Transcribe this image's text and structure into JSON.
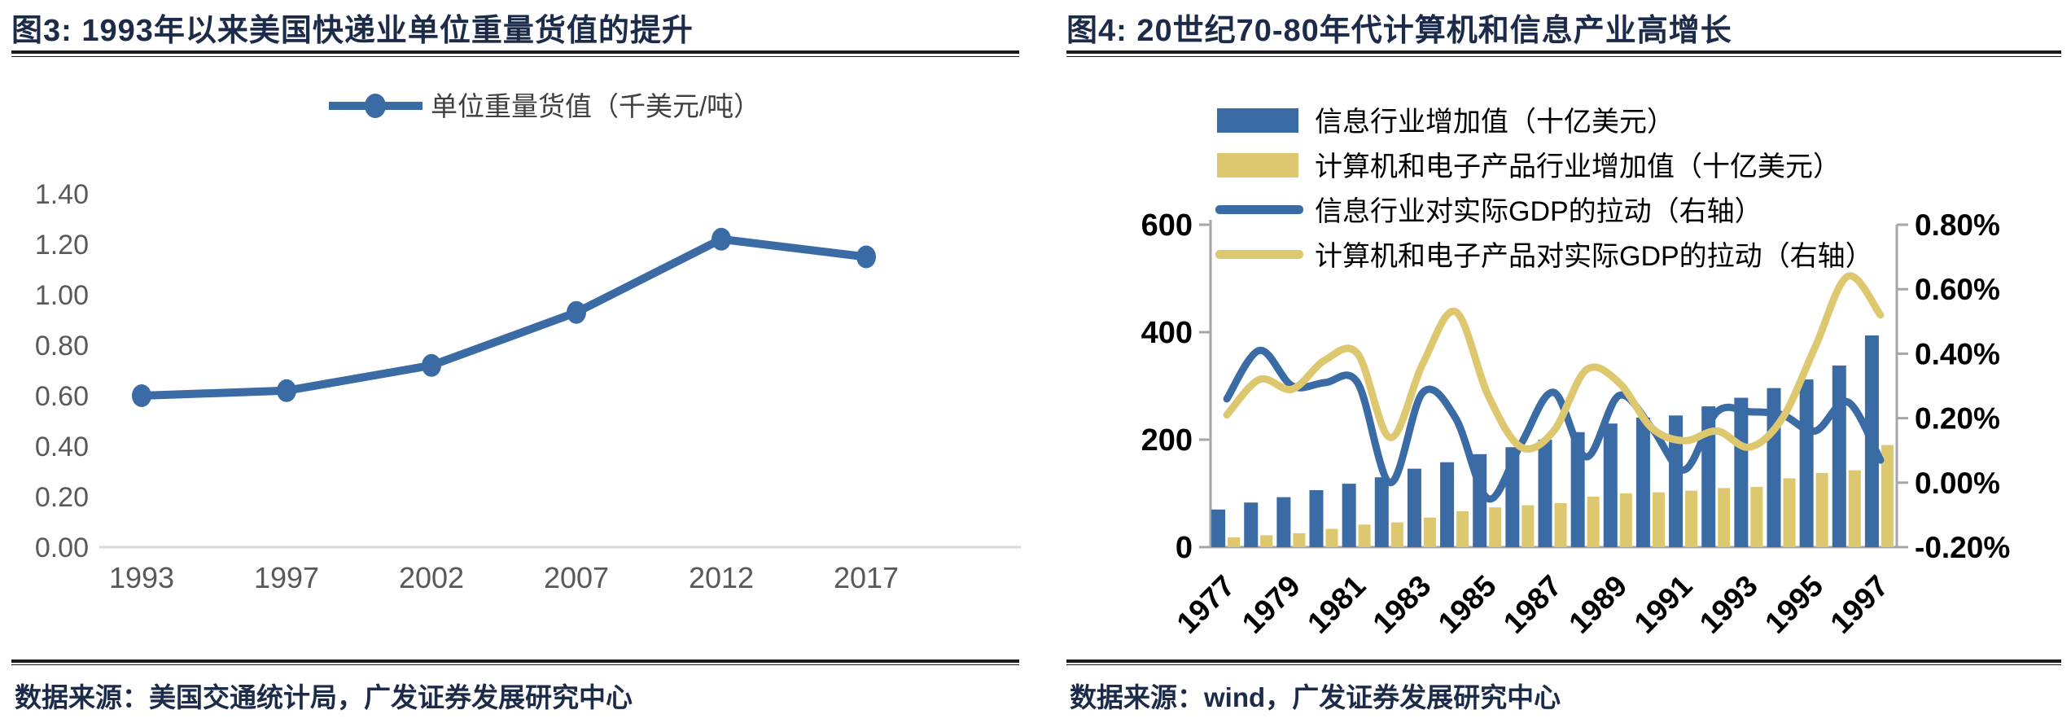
{
  "page": {
    "background": "#ffffff"
  },
  "colors": {
    "navy_text": "#1c2b49",
    "series_blue": "#3a6ba5",
    "series_yellow": "#ddc76f",
    "axis_gray_text": "#595959",
    "legend_gray_text": "#3f3f3f",
    "axis_line_light": "#d9d9d9",
    "axis_line_gray": "#a6a6a6",
    "black_text": "#000000",
    "rule_dark": "#1a1a1a"
  },
  "chart_data": [
    {
      "type": "line",
      "title": "图3:  1993年以来美国快递业单位重量货值的提升",
      "source": "数据来源：美国交通统计局，广发证券发展研究中心",
      "legend": [
        "单位重量货值（千美元/吨）"
      ],
      "legend_position": "top-center",
      "categories": [
        "1993",
        "1997",
        "2002",
        "2007",
        "2012",
        "2017"
      ],
      "values": [
        0.6,
        0.62,
        0.72,
        0.93,
        1.22,
        1.15
      ],
      "xlabel": "",
      "ylabel": "",
      "ylim": [
        0.0,
        1.4
      ],
      "ytick_step": 0.2,
      "yticks": [
        "1.40",
        "1.20",
        "1.00",
        "0.80",
        "0.60",
        "0.40",
        "0.20",
        "0.00"
      ],
      "grid": false
    },
    {
      "type": "bar+line",
      "title": "图4:  20世纪70-80年代计算机和信息产业高增长",
      "source": "数据来源：wind，广发证券发展研究中心",
      "legend_position": "top-left",
      "categories": [
        1977,
        1978,
        1979,
        1980,
        1981,
        1982,
        1983,
        1984,
        1985,
        1986,
        1987,
        1988,
        1989,
        1990,
        1991,
        1992,
        1993,
        1994,
        1995,
        1996,
        1997
      ],
      "x_tick_labels": [
        "1977",
        "1979",
        "1981",
        "1983",
        "1985",
        "1987",
        "1989",
        "1991",
        "1993",
        "1995",
        "1997"
      ],
      "left_axis": {
        "lim": [
          0,
          600
        ],
        "ticks": [
          "600",
          "400",
          "200",
          "0"
        ],
        "tick_values": [
          600,
          400,
          200,
          0
        ]
      },
      "right_axis": {
        "lim_pct": [
          -0.2,
          0.8
        ],
        "ticks": [
          "0.80%",
          "0.60%",
          "0.40%",
          "0.20%",
          "0.00%",
          "-0.20%"
        ],
        "tick_values": [
          0.8,
          0.6,
          0.4,
          0.2,
          0.0,
          -0.2
        ]
      },
      "series": [
        {
          "name": "信息行业增加值（十亿美元）",
          "kind": "bar",
          "axis": "left",
          "color_key": "series_blue",
          "values": [
            70,
            83,
            93,
            106,
            118,
            130,
            146,
            158,
            173,
            186,
            200,
            214,
            230,
            241,
            245,
            262,
            278,
            296,
            312,
            338,
            394
          ]
        },
        {
          "name": "计算机和电子产品行业增加值（十亿美元）",
          "kind": "bar",
          "axis": "left",
          "color_key": "series_yellow",
          "values": [
            18,
            22,
            26,
            34,
            42,
            46,
            55,
            67,
            74,
            78,
            82,
            94,
            100,
            102,
            105,
            110,
            112,
            128,
            138,
            143,
            190
          ]
        },
        {
          "name": "信息行业对实际GDP的拉动（右轴）",
          "kind": "line",
          "axis": "right",
          "color_key": "series_blue",
          "values": [
            0.26,
            0.41,
            0.3,
            0.31,
            0.31,
            0.0,
            0.28,
            0.2,
            -0.05,
            0.12,
            0.28,
            0.08,
            0.27,
            0.17,
            0.04,
            0.22,
            0.22,
            0.21,
            0.16,
            0.25,
            0.07
          ]
        },
        {
          "name": "计算机和电子产品对实际GDP的拉动（右轴）",
          "kind": "line",
          "axis": "right",
          "color_key": "series_yellow",
          "values": [
            0.21,
            0.32,
            0.29,
            0.38,
            0.4,
            0.14,
            0.37,
            0.53,
            0.27,
            0.11,
            0.16,
            0.35,
            0.31,
            0.17,
            0.13,
            0.16,
            0.11,
            0.2,
            0.42,
            0.64,
            0.52
          ]
        }
      ]
    }
  ]
}
